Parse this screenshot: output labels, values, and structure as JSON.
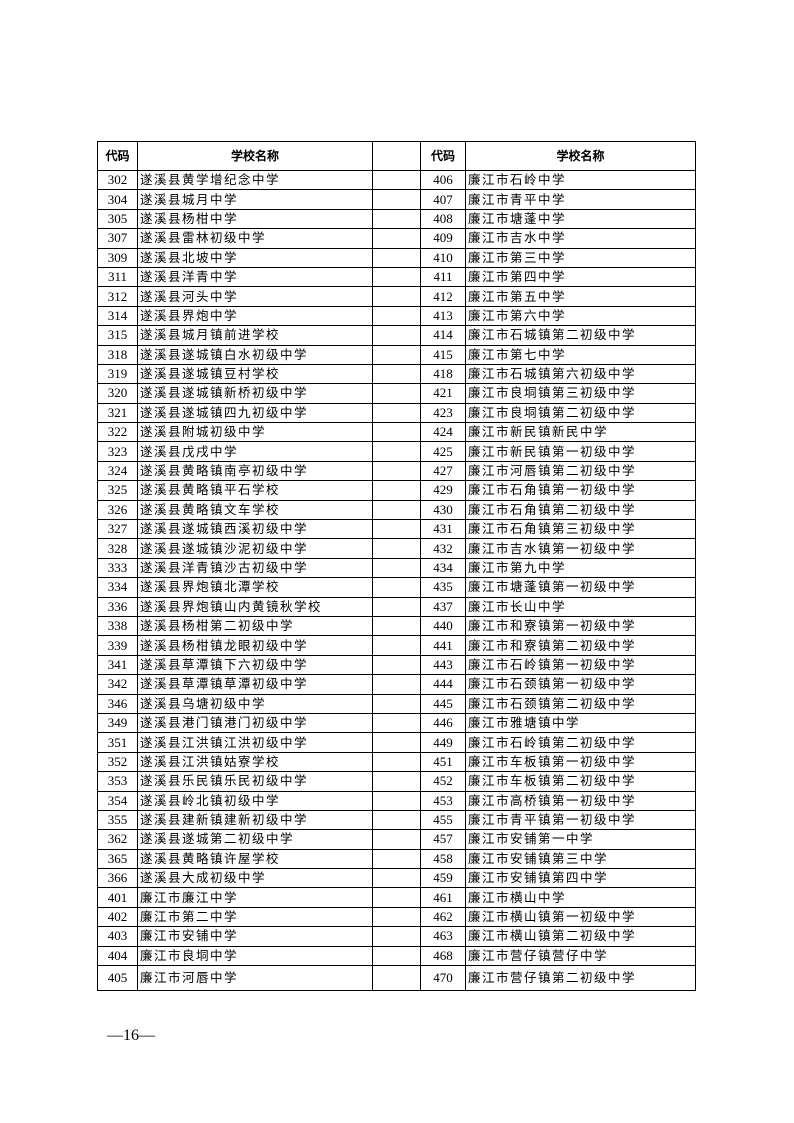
{
  "table": {
    "headers": [
      "代码",
      "学校名称",
      "",
      "代码",
      "学校名称"
    ],
    "rows": [
      [
        "302",
        "遂溪县黄学增纪念中学",
        "406",
        "廉江市石岭中学"
      ],
      [
        "304",
        "遂溪县城月中学",
        "407",
        "廉江市青平中学"
      ],
      [
        "305",
        "遂溪县杨柑中学",
        "408",
        "廉江市塘蓬中学"
      ],
      [
        "307",
        "遂溪县雷林初级中学",
        "409",
        "廉江市吉水中学"
      ],
      [
        "309",
        "遂溪县北坡中学",
        "410",
        "廉江市第三中学"
      ],
      [
        "311",
        "遂溪县洋青中学",
        "411",
        "廉江市第四中学"
      ],
      [
        "312",
        "遂溪县河头中学",
        "412",
        "廉江市第五中学"
      ],
      [
        "314",
        "遂溪县界炮中学",
        "413",
        "廉江市第六中学"
      ],
      [
        "315",
        "遂溪县城月镇前进学校",
        "414",
        "廉江市石城镇第二初级中学"
      ],
      [
        "318",
        "遂溪县遂城镇白水初级中学",
        "415",
        "廉江市第七中学"
      ],
      [
        "319",
        "遂溪县遂城镇豆村学校",
        "418",
        "廉江市石城镇第六初级中学"
      ],
      [
        "320",
        "遂溪县遂城镇新桥初级中学",
        "421",
        "廉江市良垌镇第三初级中学"
      ],
      [
        "321",
        "遂溪县遂城镇四九初级中学",
        "423",
        "廉江市良垌镇第二初级中学"
      ],
      [
        "322",
        "遂溪县附城初级中学",
        "424",
        "廉江市新民镇新民中学"
      ],
      [
        "323",
        "遂溪县戊戌中学",
        "425",
        "廉江市新民镇第一初级中学"
      ],
      [
        "324",
        "遂溪县黄略镇南亭初级中学",
        "427",
        "廉江市河唇镇第二初级中学"
      ],
      [
        "325",
        "遂溪县黄略镇平石学校",
        "429",
        "廉江市石角镇第一初级中学"
      ],
      [
        "326",
        "遂溪县黄略镇文车学校",
        "430",
        "廉江市石角镇第二初级中学"
      ],
      [
        "327",
        "遂溪县遂城镇西溪初级中学",
        "431",
        "廉江市石角镇第三初级中学"
      ],
      [
        "328",
        "遂溪县遂城镇沙泥初级中学",
        "432",
        "廉江市吉水镇第一初级中学"
      ],
      [
        "333",
        "遂溪县洋青镇沙古初级中学",
        "434",
        "廉江市第九中学"
      ],
      [
        "334",
        "遂溪县界炮镇北潭学校",
        "435",
        "廉江市塘蓬镇第一初级中学"
      ],
      [
        "336",
        "遂溪县界炮镇山内黄镜秋学校",
        "437",
        "廉江市长山中学"
      ],
      [
        "338",
        "遂溪县杨柑第二初级中学",
        "440",
        "廉江市和寮镇第一初级中学"
      ],
      [
        "339",
        "遂溪县杨柑镇龙眼初级中学",
        "441",
        "廉江市和寮镇第二初级中学"
      ],
      [
        "341",
        "遂溪县草潭镇下六初级中学",
        "443",
        "廉江市石岭镇第一初级中学"
      ],
      [
        "342",
        "遂溪县草潭镇草潭初级中学",
        "444",
        "廉江市石颈镇第一初级中学"
      ],
      [
        "346",
        "遂溪县乌塘初级中学",
        "445",
        "廉江市石颈镇第二初级中学"
      ],
      [
        "349",
        "遂溪县港门镇港门初级中学",
        "446",
        "廉江市雅塘镇中学"
      ],
      [
        "351",
        "遂溪县江洪镇江洪初级中学",
        "449",
        "廉江市石岭镇第二初级中学"
      ],
      [
        "352",
        "遂溪县江洪镇姑寮学校",
        "451",
        "廉江市车板镇第一初级中学"
      ],
      [
        "353",
        "遂溪县乐民镇乐民初级中学",
        "452",
        "廉江市车板镇第二初级中学"
      ],
      [
        "354",
        "遂溪县岭北镇初级中学",
        "453",
        "廉江市高桥镇第一初级中学"
      ],
      [
        "355",
        "遂溪县建新镇建新初级中学",
        "455",
        "廉江市青平镇第一初级中学"
      ],
      [
        "362",
        "遂溪县遂城第二初级中学",
        "457",
        "廉江市安铺第一中学"
      ],
      [
        "365",
        "遂溪县黄略镇许屋学校",
        "458",
        "廉江市安铺镇第三中学"
      ],
      [
        "366",
        "遂溪县大成初级中学",
        "459",
        "廉江市安铺镇第四中学"
      ],
      [
        "401",
        "廉江市廉江中学",
        "461",
        "廉江市横山中学"
      ],
      [
        "402",
        "廉江市第二中学",
        "462",
        "廉江市横山镇第一初级中学"
      ],
      [
        "403",
        "廉江市安铺中学",
        "463",
        "廉江市横山镇第二初级中学"
      ],
      [
        "404",
        "廉江市良垌中学",
        "468",
        "廉江市营仔镇营仔中学"
      ],
      [
        "405",
        "廉江市河唇中学",
        "470",
        "廉江市营仔镇第二初级中学"
      ]
    ]
  },
  "footer": {
    "page_number": "—16—"
  }
}
